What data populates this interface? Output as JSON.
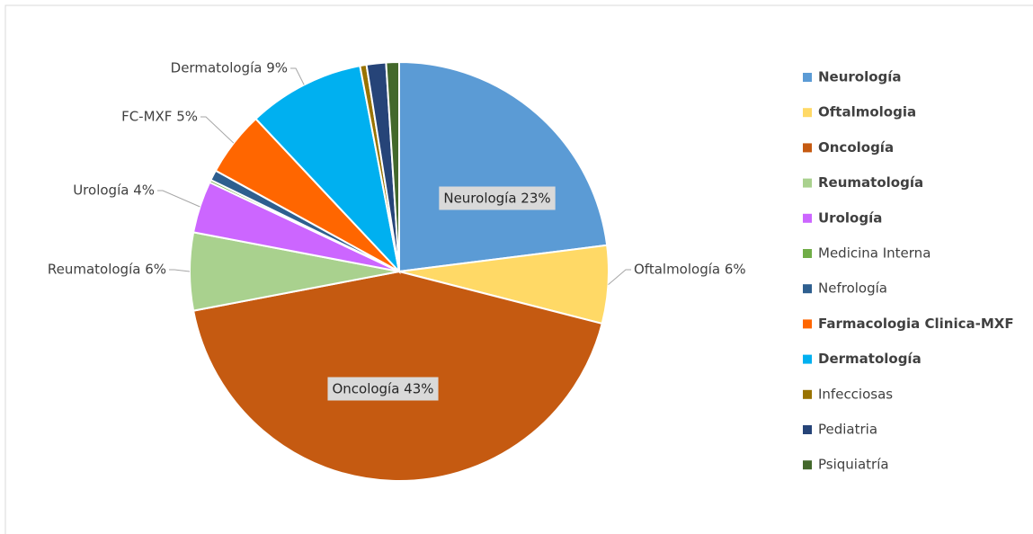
{
  "chart_data": {
    "type": "pie",
    "categories": [
      "Neurología",
      "Oftalmologia",
      "Oncología",
      "Reumatología",
      "Urología",
      "Medicina Interna",
      "Nefrología",
      "Farmacologia Clinica-MXF",
      "Dermatología",
      "Infecciosas",
      "Pediatria",
      "Psiquiatría"
    ],
    "values": [
      23,
      6,
      43,
      6,
      4,
      0.2,
      0.8,
      5,
      9,
      0.5,
      1.5,
      1
    ],
    "value_labels": [
      "Neurología 23%",
      "Oftalmología 6%",
      "Oncología 43%",
      "Reumatología 6%",
      "Urología 4%",
      null,
      null,
      "FC-MXF 5%",
      "Dermatología 9%",
      null,
      null,
      null
    ],
    "colors": [
      "#5b9bd5",
      "#ffd966",
      "#c55a11",
      "#a9d18e",
      "#cc66ff",
      "#70ad47",
      "#2e5f8f",
      "#ff6600",
      "#00b0f0",
      "#997300",
      "#264478",
      "#43682b"
    ],
    "legend": "right"
  }
}
